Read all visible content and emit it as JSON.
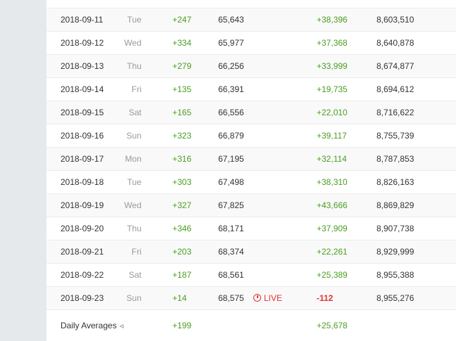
{
  "rows": [
    {
      "date": "2018-09-11",
      "day": "Tue",
      "delta1": "+247",
      "total1": "65,643",
      "delta2": "+38,396",
      "total2": "8,603,510"
    },
    {
      "date": "2018-09-12",
      "day": "Wed",
      "delta1": "+334",
      "total1": "65,977",
      "delta2": "+37,368",
      "total2": "8,640,878"
    },
    {
      "date": "2018-09-13",
      "day": "Thu",
      "delta1": "+279",
      "total1": "66,256",
      "delta2": "+33,999",
      "total2": "8,674,877"
    },
    {
      "date": "2018-09-14",
      "day": "Fri",
      "delta1": "+135",
      "total1": "66,391",
      "delta2": "+19,735",
      "total2": "8,694,612"
    },
    {
      "date": "2018-09-15",
      "day": "Sat",
      "delta1": "+165",
      "total1": "66,556",
      "delta2": "+22,010",
      "total2": "8,716,622"
    },
    {
      "date": "2018-09-16",
      "day": "Sun",
      "delta1": "+323",
      "total1": "66,879",
      "delta2": "+39,117",
      "total2": "8,755,739"
    },
    {
      "date": "2018-09-17",
      "day": "Mon",
      "delta1": "+316",
      "total1": "67,195",
      "delta2": "+32,114",
      "total2": "8,787,853"
    },
    {
      "date": "2018-09-18",
      "day": "Tue",
      "delta1": "+303",
      "total1": "67,498",
      "delta2": "+38,310",
      "total2": "8,826,163"
    },
    {
      "date": "2018-09-19",
      "day": "Wed",
      "delta1": "+327",
      "total1": "67,825",
      "delta2": "+43,666",
      "total2": "8,869,829"
    },
    {
      "date": "2018-09-20",
      "day": "Thu",
      "delta1": "+346",
      "total1": "68,171",
      "delta2": "+37,909",
      "total2": "8,907,738"
    },
    {
      "date": "2018-09-21",
      "day": "Fri",
      "delta1": "+203",
      "total1": "68,374",
      "delta2": "+22,261",
      "total2": "8,929,999"
    },
    {
      "date": "2018-09-22",
      "day": "Sat",
      "delta1": "+187",
      "total1": "68,561",
      "delta2": "+25,389",
      "total2": "8,955,388"
    },
    {
      "date": "2018-09-23",
      "day": "Sun",
      "delta1": "+14",
      "total1": "68,575",
      "live": "LIVE",
      "delta2": "-112",
      "total2": "8,955,276"
    }
  ],
  "averages": {
    "label": "Daily Averages",
    "icon": "share-icon",
    "delta1": "+199",
    "delta2": "+25,678"
  },
  "colors": {
    "positive": "#4a9e22",
    "negative": "#e3342f"
  }
}
